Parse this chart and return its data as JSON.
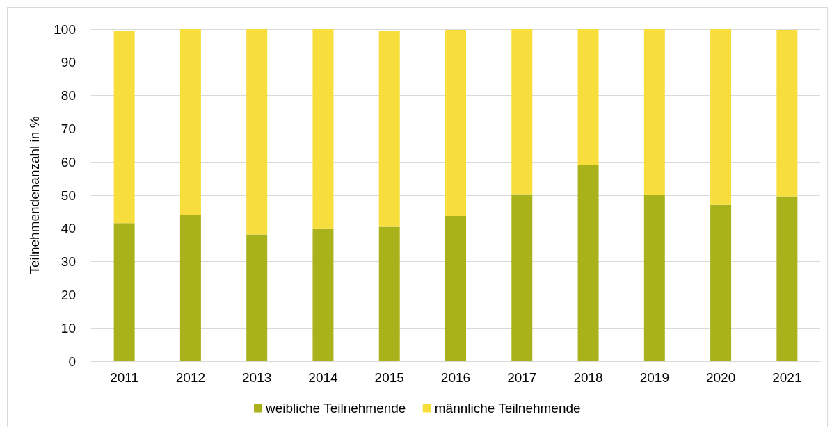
{
  "chart_data": {
    "type": "bar",
    "stacked": true,
    "ylabel": "Teilnehmendenanzahl in %",
    "categories": [
      "2011",
      "2012",
      "2013",
      "2014",
      "2015",
      "2016",
      "2017",
      "2018",
      "2019",
      "2020",
      "2021"
    ],
    "series": [
      {
        "name": "weibliche Teilnehmende",
        "color": "#a9b21b",
        "values": [
          41.6,
          44.1,
          38.2,
          40.0,
          40.5,
          43.7,
          50.3,
          59.1,
          50.1,
          47.1,
          49.7
        ]
      },
      {
        "name": "männliche Teilnehmende",
        "color": "#f8de3d",
        "values": [
          58.0,
          55.9,
          61.8,
          60.0,
          59.1,
          56.1,
          50.1,
          40.9,
          49.9,
          52.9,
          50.1
        ]
      }
    ],
    "ylim": [
      0,
      100
    ],
    "yticks": [
      0,
      10,
      20,
      30,
      40,
      50,
      60,
      70,
      80,
      90,
      100
    ],
    "grid": "y",
    "legend": "bottom"
  }
}
